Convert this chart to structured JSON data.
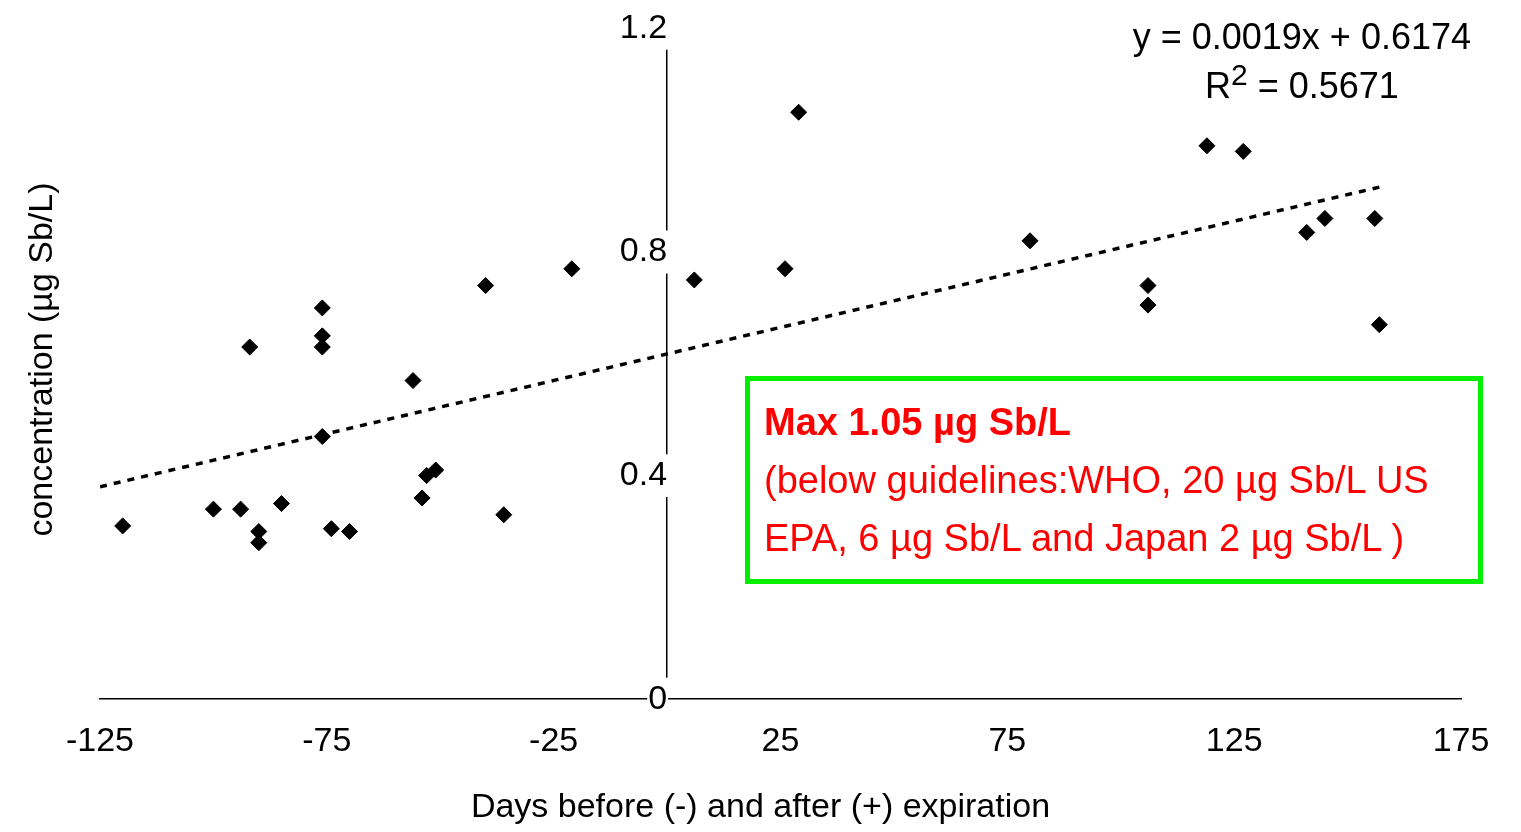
{
  "chart_data": {
    "type": "scatter",
    "xlabel": "Days before (-) and after (+) expiration",
    "ylabel": "concentration (µg Sb/L)",
    "annotations": [
      "y = 0.0019x + 0.6174",
      "R$^{2}$ = 0.5671",
      "Max 1.05 µg Sb/L",
      "(below guidelines:WHO, 20 µg Sb/L US EPA, 6 µg Sb/L and Japan 2 µg Sb/L )"
    ],
    "series": [
      {
        "type": "scatter",
        "color": "#000000",
        "x": [
          -120,
          -100,
          -94,
          -92,
          -90,
          -90,
          -85,
          -76,
          -76,
          -76,
          -76,
          -74,
          -70,
          -56,
          -54,
          -53,
          -51,
          -40,
          -36,
          -21,
          6,
          26,
          29,
          80,
          106,
          106,
          119,
          127,
          141,
          145,
          156,
          157
        ],
        "values": [
          0.31,
          0.34,
          0.34,
          0.63,
          0.3,
          0.28,
          0.35,
          0.7,
          0.65,
          0.63,
          0.47,
          0.305,
          0.3,
          0.57,
          0.36,
          0.4,
          0.41,
          0.74,
          0.33,
          0.77,
          0.75,
          0.77,
          1.05,
          0.82,
          0.74,
          0.705,
          0.99,
          0.98,
          0.835,
          0.86,
          0.86,
          0.67
        ]
      },
      {
        "type": "line",
        "color": "#000000",
        "line_style": "dashed",
        "marker": "none",
        "x": [
          -125,
          157
        ],
        "values": [
          0.38,
          0.916
        ]
      }
    ],
    "marker": "diamond",
    "legend": false,
    "grid": false,
    "xlim": [
      -125,
      175
    ],
    "xticks": [
      -125,
      -75,
      -25,
      25,
      75,
      125,
      175
    ],
    "ylim": [
      0,
      1.2
    ],
    "yticks": [
      0,
      0.4,
      0.8,
      1.2
    ]
  }
}
